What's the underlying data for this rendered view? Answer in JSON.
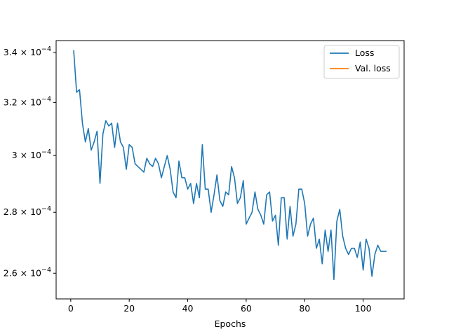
{
  "chart_data": {
    "type": "line",
    "title": "",
    "xlabel": "Epochs",
    "ylabel": "",
    "xlim": [
      -5,
      114
    ],
    "ylim": [
      0.000252,
      0.000345
    ],
    "y_scale": "log",
    "x_ticks": [
      0,
      20,
      40,
      60,
      80,
      100
    ],
    "x_tick_labels": [
      "0",
      "20",
      "40",
      "60",
      "80",
      "100"
    ],
    "y_ticks": [
      0.00026,
      0.00028,
      0.0003,
      0.00032,
      0.00034
    ],
    "y_tick_labels": [
      {
        "mant": "2.6",
        "base": "10",
        "exp": "−4"
      },
      {
        "mant": "2.8",
        "base": "10",
        "exp": "−4"
      },
      {
        "mant": "3",
        "base": "10",
        "exp": "−4"
      },
      {
        "mant": "3.2",
        "base": "10",
        "exp": "−4"
      },
      {
        "mant": "3.4",
        "base": "10",
        "exp": "−4"
      }
    ],
    "grid": false,
    "legend_position": "top-right",
    "series": [
      {
        "name": "Loss",
        "color": "#1f77b4",
        "x": [
          1,
          2,
          3,
          4,
          5,
          6,
          7,
          8,
          9,
          10,
          11,
          12,
          13,
          14,
          15,
          16,
          17,
          18,
          19,
          20,
          21,
          22,
          23,
          24,
          25,
          26,
          27,
          28,
          29,
          30,
          31,
          32,
          33,
          34,
          35,
          36,
          37,
          38,
          39,
          40,
          41,
          42,
          43,
          44,
          45,
          46,
          47,
          48,
          49,
          50,
          51,
          52,
          53,
          54,
          55,
          56,
          57,
          58,
          59,
          60,
          61,
          62,
          63,
          64,
          65,
          66,
          67,
          68,
          69,
          70,
          71,
          72,
          73,
          74,
          75,
          76,
          77,
          78,
          79,
          80,
          81,
          82,
          83,
          84,
          85,
          86,
          87,
          88,
          89,
          90,
          91,
          92,
          93,
          94,
          95,
          96,
          97,
          98,
          99,
          100,
          101,
          102,
          103,
          104,
          105,
          106,
          107,
          108
        ],
        "y": [
          0.000341,
          0.000324,
          0.000325,
          0.000312,
          0.000305,
          0.00031,
          0.000302,
          0.000305,
          0.000309,
          0.00029,
          0.000308,
          0.000313,
          0.000311,
          0.000312,
          0.000303,
          0.000312,
          0.000305,
          0.000303,
          0.000295,
          0.000304,
          0.000303,
          0.000297,
          0.000296,
          0.000295,
          0.000294,
          0.000299,
          0.000297,
          0.000296,
          0.000299,
          0.000297,
          0.000292,
          0.000296,
          0.0003,
          0.000295,
          0.000287,
          0.000285,
          0.000298,
          0.000292,
          0.000292,
          0.000288,
          0.00029,
          0.000283,
          0.00029,
          0.000285,
          0.000304,
          0.000288,
          0.000288,
          0.00028,
          0.000286,
          0.000293,
          0.000284,
          0.000282,
          0.000287,
          0.000286,
          0.000296,
          0.000292,
          0.000283,
          0.000285,
          0.000291,
          0.000276,
          0.000278,
          0.00028,
          0.000287,
          0.000281,
          0.000279,
          0.000276,
          0.000286,
          0.000287,
          0.000277,
          0.000279,
          0.000269,
          0.000285,
          0.000285,
          0.000271,
          0.000282,
          0.000272,
          0.000276,
          0.000288,
          0.000288,
          0.000283,
          0.000272,
          0.000276,
          0.000278,
          0.000268,
          0.000271,
          0.000263,
          0.000274,
          0.000267,
          0.000274,
          0.000258,
          0.000277,
          0.000281,
          0.000272,
          0.000268,
          0.000266,
          0.000268,
          0.000268,
          0.000265,
          0.00027,
          0.000261,
          0.000271,
          0.000268,
          0.000259,
          0.000266,
          0.000269,
          0.000267,
          0.000267,
          0.000267
        ]
      },
      {
        "name": "Val. loss",
        "color": "#ff7f0e",
        "x": [],
        "y": []
      }
    ]
  }
}
